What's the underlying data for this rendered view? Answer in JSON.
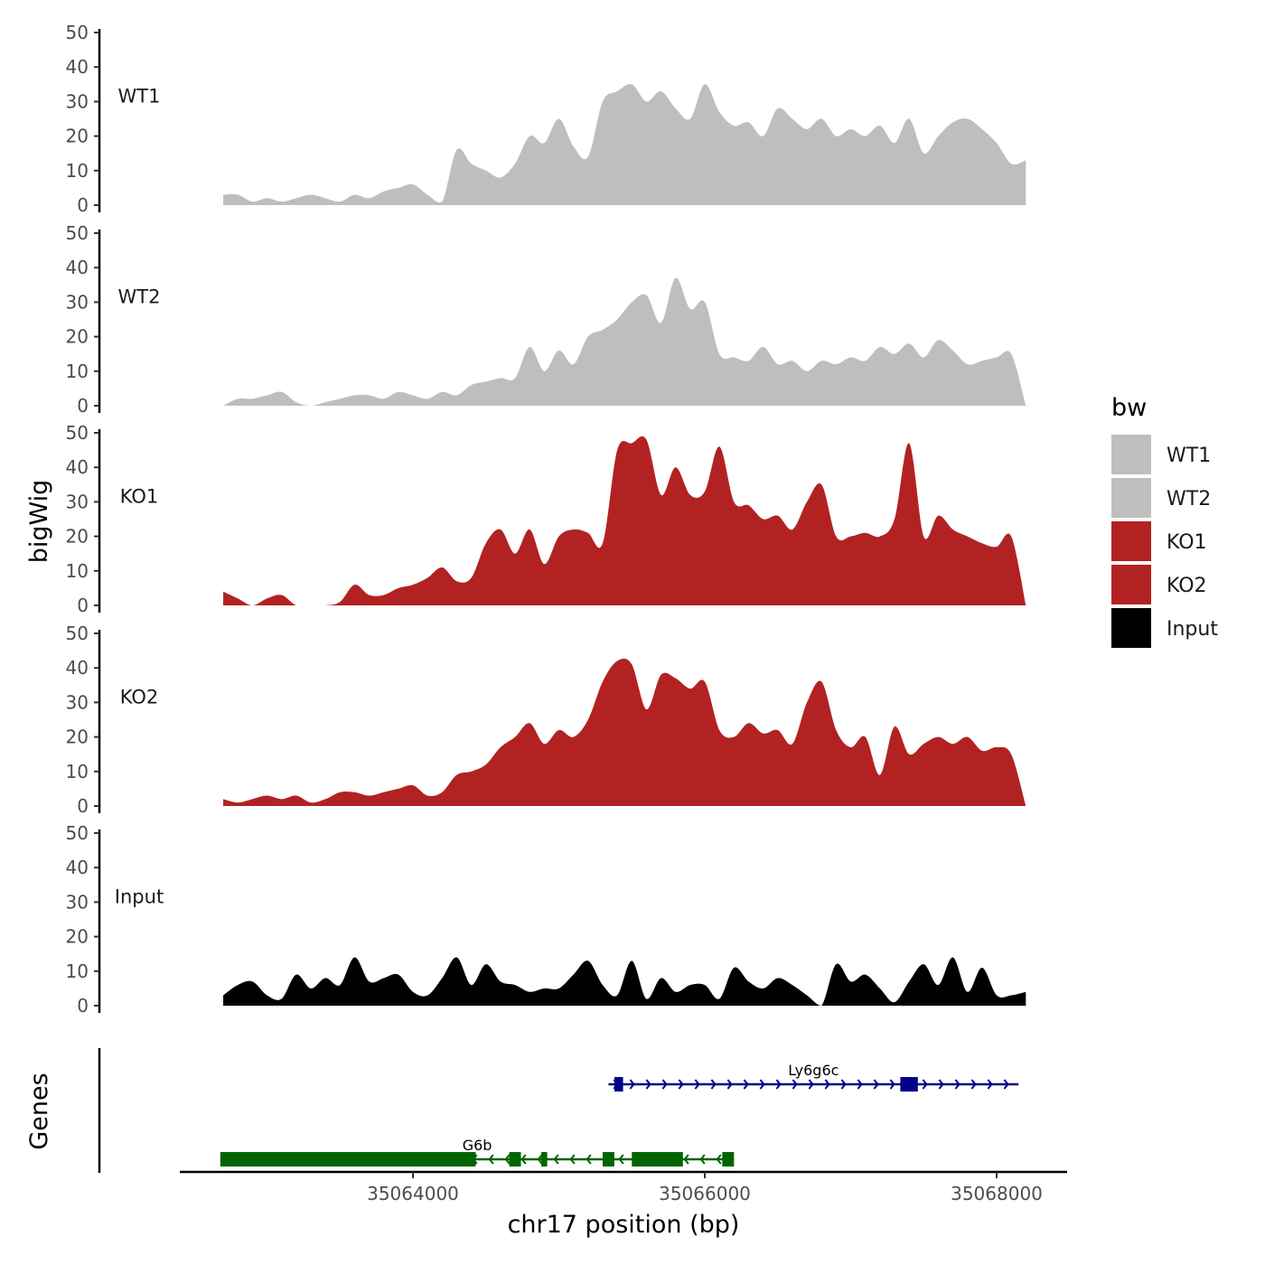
{
  "chart_data": {
    "type": "area",
    "ylabel": "bigWig",
    "genes_label": "Genes",
    "xlabel": "chr17 position (bp)",
    "x_range": [
      35062700,
      35068200
    ],
    "x_ticks": [
      35064000,
      35066000,
      35068000
    ],
    "x_tick_labels": [
      "35064000",
      "35066000",
      "35068000"
    ],
    "ylim": [
      0,
      50
    ],
    "y_ticks": [
      0,
      10,
      20,
      30,
      40,
      50
    ],
    "y_tick_labels": [
      "0",
      "10",
      "20",
      "30",
      "40",
      "50"
    ],
    "legend": {
      "title": "bw",
      "entries": [
        {
          "label": "WT1",
          "color": "#bebebe"
        },
        {
          "label": "WT2",
          "color": "#bebebe"
        },
        {
          "label": "KO1",
          "color": "#b22222"
        },
        {
          "label": "KO2",
          "color": "#b22222"
        },
        {
          "label": "Input",
          "color": "#000000"
        }
      ]
    },
    "series": [
      {
        "name": "WT1",
        "color": "#bebebe",
        "x": [
          35062700,
          35062800,
          35062900,
          35063000,
          35063100,
          35063200,
          35063300,
          35063400,
          35063500,
          35063600,
          35063700,
          35063800,
          35063900,
          35064000,
          35064100,
          35064200,
          35064300,
          35064400,
          35064500,
          35064600,
          35064700,
          35064800,
          35064900,
          35065000,
          35065100,
          35065200,
          35065300,
          35065400,
          35065500,
          35065600,
          35065700,
          35065800,
          35065900,
          35066000,
          35066100,
          35066200,
          35066300,
          35066400,
          35066500,
          35066600,
          35066700,
          35066800,
          35066900,
          35067000,
          35067100,
          35067200,
          35067300,
          35067400,
          35067500,
          35067600,
          35067700,
          35067800,
          35067900,
          35068000,
          35068100,
          35068200
        ],
        "values": [
          3,
          3,
          1,
          2,
          1,
          2,
          3,
          2,
          1,
          3,
          2,
          4,
          5,
          6,
          3,
          1,
          16,
          12,
          10,
          8,
          12,
          20,
          18,
          25,
          17,
          14,
          30,
          33,
          35,
          30,
          33,
          28,
          25,
          35,
          27,
          23,
          24,
          20,
          28,
          25,
          22,
          25,
          20,
          22,
          20,
          23,
          18,
          25,
          15,
          20,
          24,
          25,
          22,
          18,
          12,
          13
        ]
      },
      {
        "name": "WT2",
        "color": "#bebebe",
        "x": [
          35062700,
          35062800,
          35062900,
          35063000,
          35063100,
          35063200,
          35063300,
          35063400,
          35063500,
          35063600,
          35063700,
          35063800,
          35063900,
          35064000,
          35064100,
          35064200,
          35064300,
          35064400,
          35064500,
          35064600,
          35064700,
          35064800,
          35064900,
          35065000,
          35065100,
          35065200,
          35065300,
          35065400,
          35065500,
          35065600,
          35065700,
          35065800,
          35065900,
          35066000,
          35066100,
          35066200,
          35066300,
          35066400,
          35066500,
          35066600,
          35066700,
          35066800,
          35066900,
          35067000,
          35067100,
          35067200,
          35067300,
          35067400,
          35067500,
          35067600,
          35067700,
          35067800,
          35067900,
          35068000,
          35068100,
          35068200
        ],
        "values": [
          0,
          2,
          2,
          3,
          4,
          1,
          0,
          1,
          2,
          3,
          3,
          2,
          4,
          3,
          2,
          4,
          3,
          6,
          7,
          8,
          8,
          17,
          10,
          16,
          12,
          20,
          22,
          25,
          30,
          32,
          24,
          37,
          28,
          30,
          15,
          14,
          13,
          17,
          12,
          13,
          10,
          13,
          12,
          14,
          13,
          17,
          15,
          18,
          14,
          19,
          16,
          12,
          13,
          14,
          15,
          0
        ]
      },
      {
        "name": "KO1",
        "color": "#b22222",
        "x": [
          35062700,
          35062800,
          35062900,
          35063000,
          35063100,
          35063200,
          35063300,
          35063400,
          35063500,
          35063600,
          35063700,
          35063800,
          35063900,
          35064000,
          35064100,
          35064200,
          35064300,
          35064400,
          35064500,
          35064600,
          35064700,
          35064800,
          35064900,
          35065000,
          35065100,
          35065200,
          35065300,
          35065400,
          35065500,
          35065600,
          35065700,
          35065800,
          35065900,
          35066000,
          35066100,
          35066200,
          35066300,
          35066400,
          35066500,
          35066600,
          35066700,
          35066800,
          35066900,
          35067000,
          35067100,
          35067200,
          35067300,
          35067400,
          35067500,
          35067600,
          35067700,
          35067800,
          35067900,
          35068000,
          35068100,
          35068200
        ],
        "values": [
          4,
          2,
          0,
          2,
          3,
          0,
          0,
          0,
          1,
          6,
          3,
          3,
          5,
          6,
          8,
          11,
          7,
          8,
          18,
          22,
          15,
          22,
          12,
          20,
          22,
          21,
          18,
          45,
          47,
          48,
          32,
          40,
          32,
          33,
          46,
          30,
          29,
          25,
          26,
          22,
          30,
          35,
          20,
          20,
          21,
          20,
          25,
          47,
          20,
          26,
          22,
          20,
          18,
          17,
          20,
          0
        ]
      },
      {
        "name": "KO2",
        "color": "#b22222",
        "x": [
          35062700,
          35062800,
          35062900,
          35063000,
          35063100,
          35063200,
          35063300,
          35063400,
          35063500,
          35063600,
          35063700,
          35063800,
          35063900,
          35064000,
          35064100,
          35064200,
          35064300,
          35064400,
          35064500,
          35064600,
          35064700,
          35064800,
          35064900,
          35065000,
          35065100,
          35065200,
          35065300,
          35065400,
          35065500,
          35065600,
          35065700,
          35065800,
          35065900,
          35066000,
          35066100,
          35066200,
          35066300,
          35066400,
          35066500,
          35066600,
          35066700,
          35066800,
          35066900,
          35067000,
          35067100,
          35067200,
          35067300,
          35067400,
          35067500,
          35067600,
          35067700,
          35067800,
          35067900,
          35068000,
          35068100,
          35068200
        ],
        "values": [
          2,
          1,
          2,
          3,
          2,
          3,
          1,
          2,
          4,
          4,
          3,
          4,
          5,
          6,
          3,
          4,
          9,
          10,
          12,
          17,
          20,
          24,
          18,
          22,
          20,
          25,
          36,
          42,
          41,
          28,
          38,
          37,
          34,
          36,
          22,
          20,
          24,
          21,
          22,
          18,
          30,
          36,
          22,
          17,
          20,
          9,
          23,
          15,
          18,
          20,
          18,
          20,
          16,
          17,
          15,
          0
        ]
      },
      {
        "name": "Input",
        "color": "#000000",
        "x": [
          35062700,
          35062800,
          35062900,
          35063000,
          35063100,
          35063200,
          35063300,
          35063400,
          35063500,
          35063600,
          35063700,
          35063800,
          35063900,
          35064000,
          35064100,
          35064200,
          35064300,
          35064400,
          35064500,
          35064600,
          35064700,
          35064800,
          35064900,
          35065000,
          35065100,
          35065200,
          35065300,
          35065400,
          35065500,
          35065600,
          35065700,
          35065800,
          35065900,
          35066000,
          35066100,
          35066200,
          35066300,
          35066400,
          35066500,
          35066600,
          35066700,
          35066800,
          35066900,
          35067000,
          35067100,
          35067200,
          35067300,
          35067400,
          35067500,
          35067600,
          35067700,
          35067800,
          35067900,
          35068000,
          35068100,
          35068200
        ],
        "values": [
          3,
          6,
          7,
          3,
          2,
          9,
          5,
          8,
          6,
          14,
          7,
          8,
          9,
          4,
          3,
          8,
          14,
          6,
          12,
          7,
          6,
          4,
          5,
          5,
          9,
          13,
          6,
          3,
          13,
          2,
          8,
          4,
          6,
          6,
          2,
          11,
          7,
          5,
          8,
          6,
          3,
          0,
          12,
          7,
          9,
          5,
          1,
          7,
          12,
          6,
          14,
          4,
          11,
          3,
          3,
          4
        ]
      }
    ],
    "genes": [
      {
        "name": "Ly6g6c",
        "strand": "+",
        "color": "#00008b",
        "start": 35065340,
        "end": 35068150,
        "exons": [
          [
            35065380,
            35065440
          ],
          [
            35067340,
            35067460
          ]
        ]
      },
      {
        "name": "G6b",
        "strand": "-",
        "color": "#006400",
        "start": 35062680,
        "end": 35066200,
        "exons": [
          [
            35062680,
            35064430
          ],
          [
            35064660,
            35064740
          ],
          [
            35064880,
            35064920
          ],
          [
            35065300,
            35065380
          ],
          [
            35065500,
            35065850
          ],
          [
            35066120,
            35066200
          ]
        ]
      }
    ]
  }
}
